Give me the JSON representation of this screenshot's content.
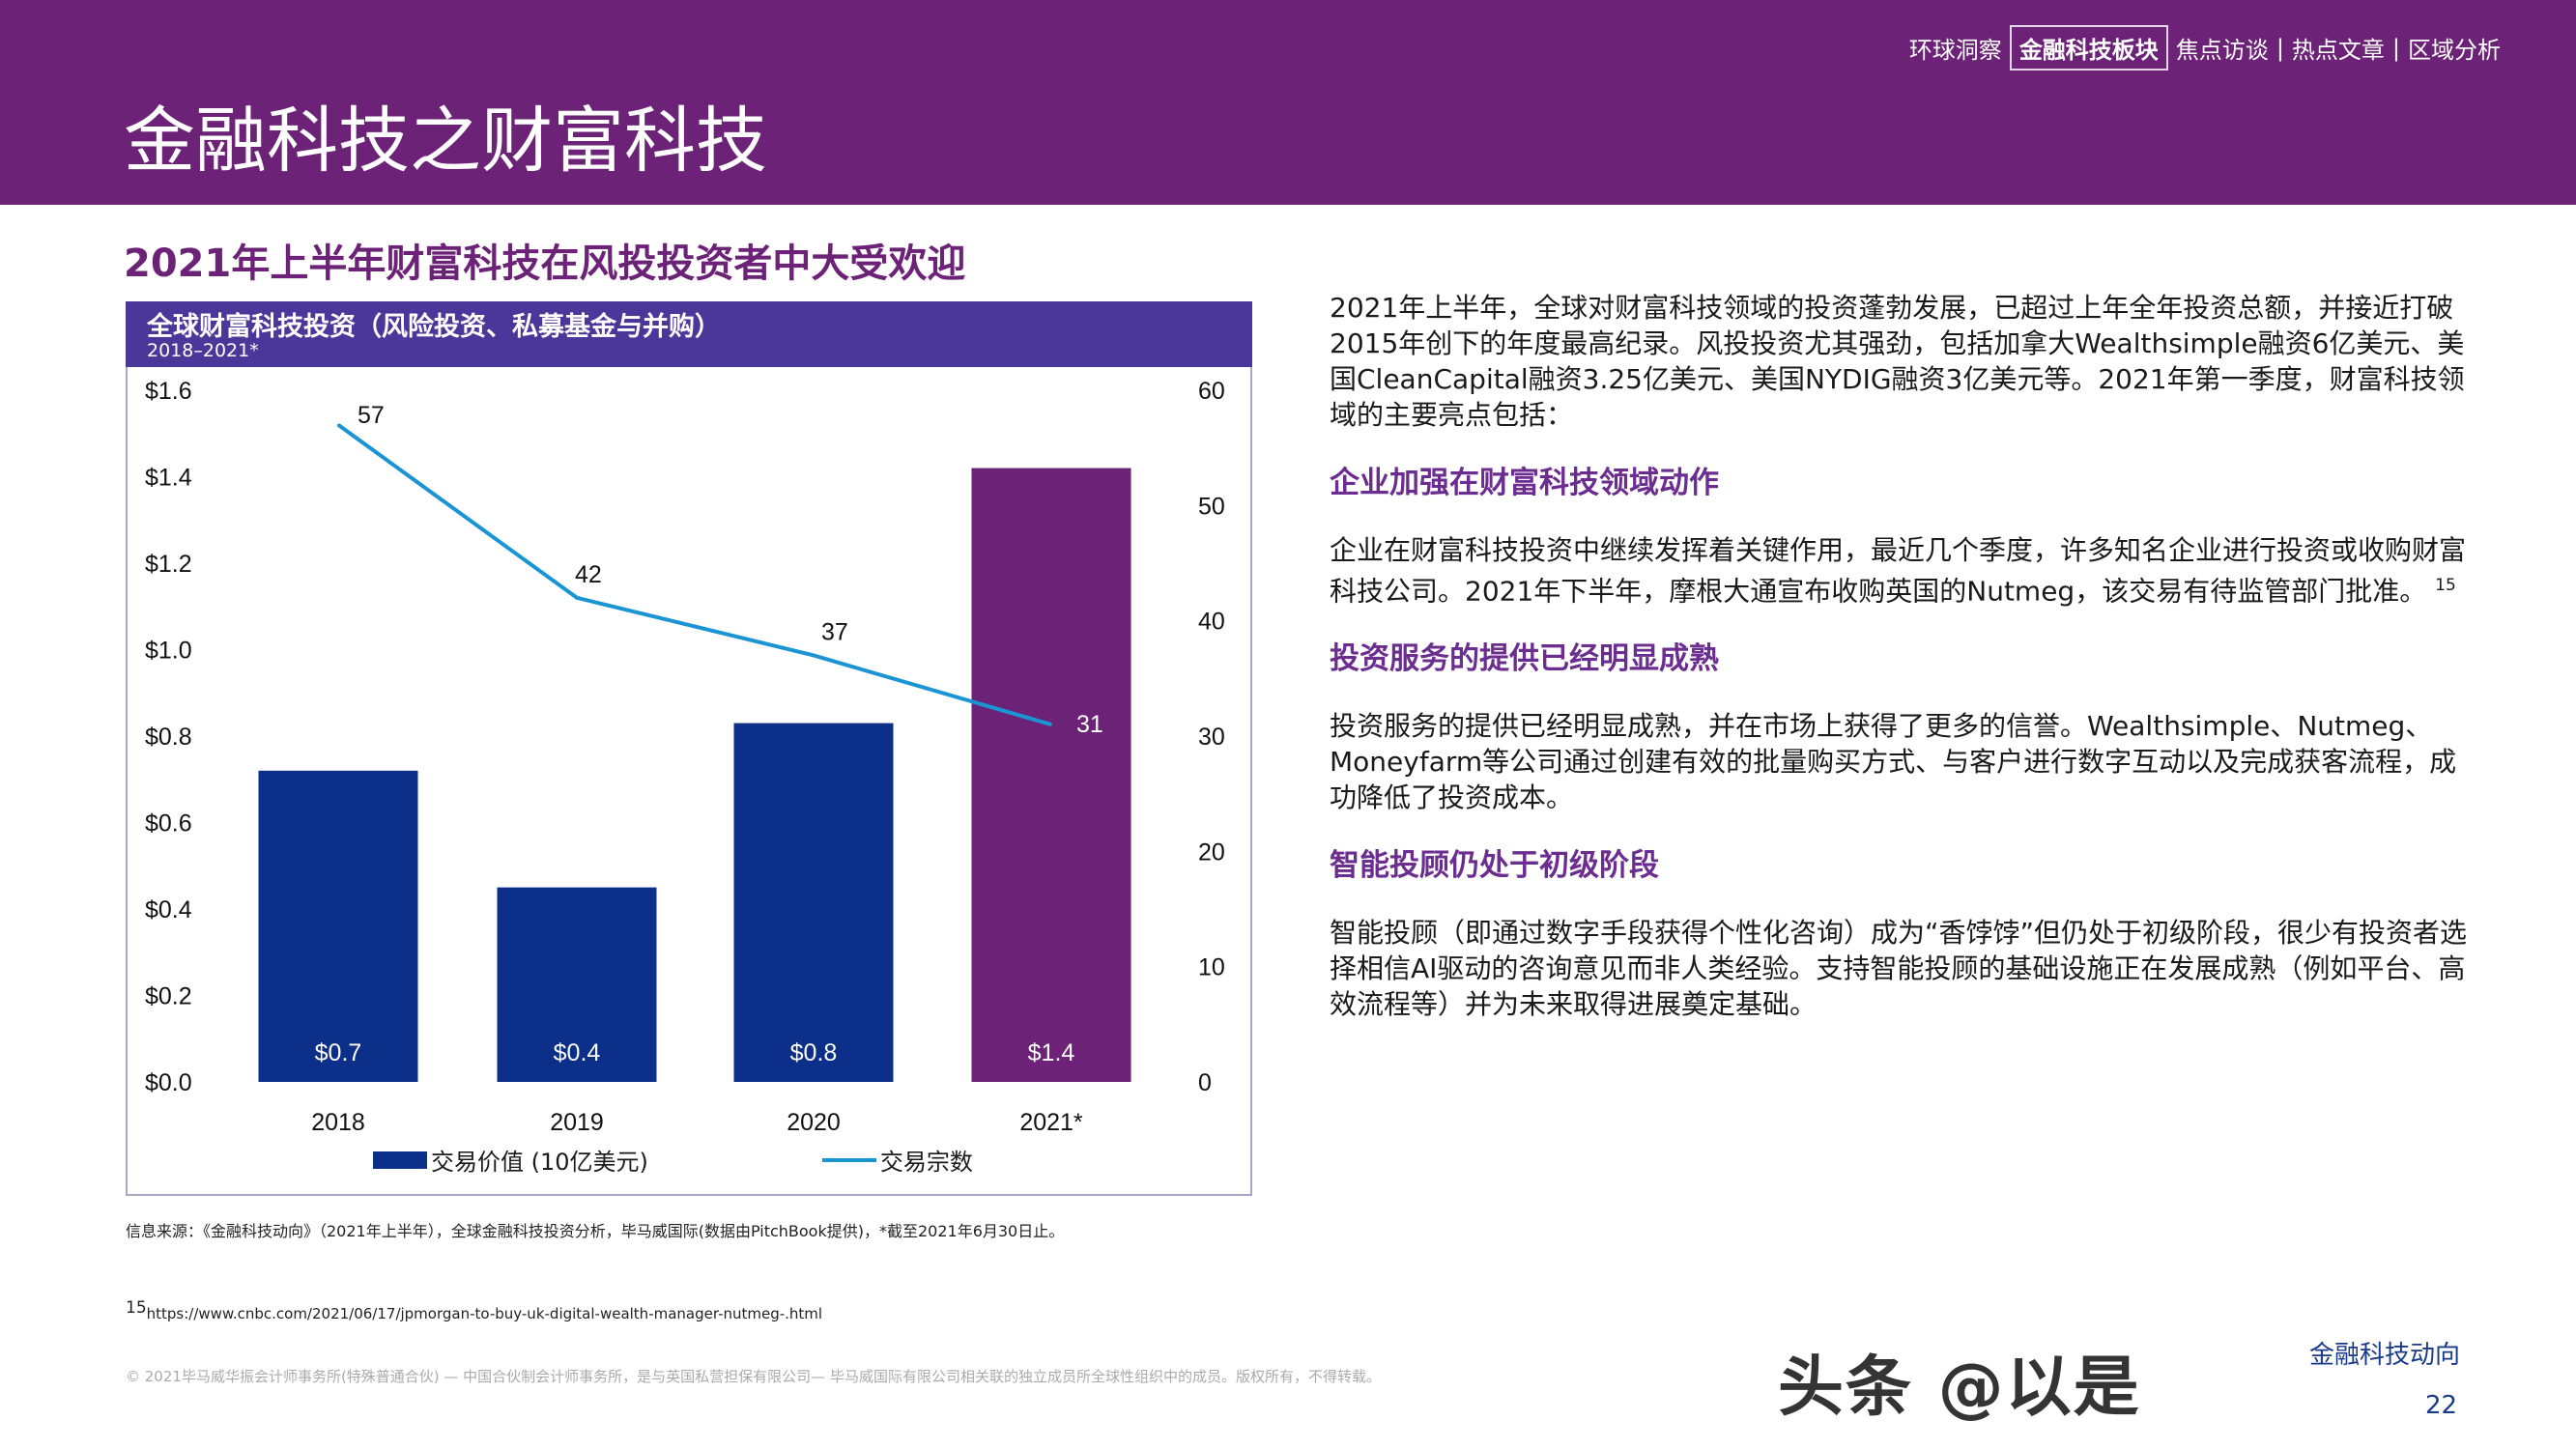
{
  "header": {
    "title": "金融科技之财富科技",
    "nav": [
      "环球洞察",
      "金融科技板块",
      "焦点访谈",
      "|",
      "热点文章",
      "|",
      "区域分析"
    ],
    "nav_active_index": 1,
    "bg_color": "#6b2277"
  },
  "section_title": "2021年上半年财富科技在风投投资者中大受欢迎",
  "chart": {
    "title": "全球财富科技投资（风险投资、私募基金与并购）",
    "subtitle": "2018–2021*"
  },
  "chart_data": {
    "type": "bar+line",
    "categories": [
      "2018",
      "2019",
      "2020",
      "2021*"
    ],
    "series": [
      {
        "name": "交易价值 (10亿美元)",
        "type": "bar",
        "axis": "left",
        "values": [
          0.72,
          0.45,
          0.83,
          1.42
        ],
        "labels": [
          "$0.7",
          "$0.4",
          "$0.8",
          "$1.4"
        ],
        "colors": [
          "#0c2f8a",
          "#0c2f8a",
          "#0c2f8a",
          "#6b2277"
        ]
      },
      {
        "name": "交易宗数",
        "type": "line",
        "axis": "right",
        "values": [
          57,
          42,
          37,
          31
        ],
        "labels": [
          "57",
          "42",
          "37",
          "31"
        ],
        "color": "#1a94d3"
      }
    ],
    "y_left": {
      "ylim": [
        0,
        1.6
      ],
      "ticks": [
        "$0.0",
        "$0.2",
        "$0.4",
        "$0.6",
        "$0.8",
        "$1.0",
        "$1.2",
        "$1.4",
        "$1.6"
      ]
    },
    "y_right": {
      "ylim": [
        0,
        60
      ],
      "ticks": [
        "0",
        "10",
        "20",
        "30",
        "40",
        "50",
        "60"
      ]
    },
    "legend_position": "bottom",
    "grid": false
  },
  "body": {
    "intro": "2021年上半年，全球对财富科技领域的投资蓬勃发展，已超过上年全年投资总额，并接近打破2015年创下的年度最高纪录。风投投资尤其强劲，包括加拿大Wealthsimple融资6亿美元、美国CleanCapital融资3.25亿美元、美国NYDIG融资3亿美元等。2021年第一季度，财富科技领域的主要亮点包括：",
    "sections": [
      {
        "heading": "企业加强在财富科技领域动作",
        "text": "企业在财富科技投资中继续发挥着关键作用，最近几个季度，许多知名企业进行投资或收购财富科技公司。2021年下半年，摩根大通宣布收购英国的Nutmeg，该交易有待监管部门批准。",
        "sup": "15"
      },
      {
        "heading": "投资服务的提供已经明显成熟",
        "text": "投资服务的提供已经明显成熟，并在市场上获得了更多的信誉。Wealthsimple、Nutmeg、Moneyfarm等公司通过创建有效的批量购买方式、与客户进行数字互动以及完成获客流程，成功降低了投资成本。"
      },
      {
        "heading": "智能投顾仍处于初级阶段",
        "text": "智能投顾（即通过数字手段获得个性化咨询）成为“香饽饽”但仍处于初级阶段，很少有投资者选择相信AI驱动的咨询意见而非人类经验。支持智能投顾的基础设施正在发展成熟（例如平台、高效流程等）并为未来取得进展奠定基础。"
      }
    ]
  },
  "footer": {
    "source": "信息来源：《金融科技动向》（2021年上半年），全球金融科技投资分析，毕马威国际(数据由PitchBook提供)，*截至2021年6月30日止。",
    "footnote_num": "15",
    "footnote_url": "https://www.cnbc.com/2021/06/17/jpmorgan-to-buy-uk-digital-wealth-manager-nutmeg-.html",
    "copyright": "© 2021毕马威华振会计师事务所(特殊普通合伙) — 中国合伙制会计师事务所，是与英国私营担保有限公司— 毕马威国际有限公司相关联的独立成员所全球性组织中的成员。版权所有，不得转载。",
    "brand": "金融科技动向",
    "page_number": "22",
    "watermark": "头条 @以是"
  }
}
